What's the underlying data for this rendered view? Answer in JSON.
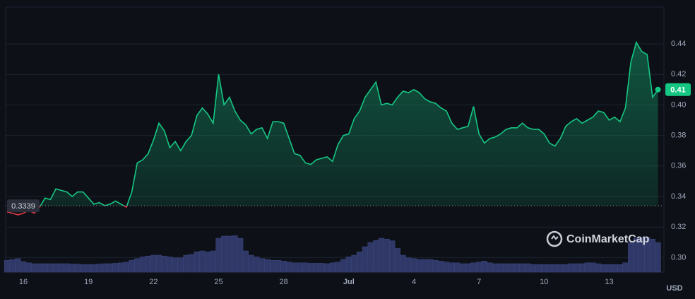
{
  "chart_data": {
    "type": "line",
    "categories": [
      null,
      null,
      null,
      "16",
      null,
      null,
      null,
      null,
      null,
      null,
      null,
      null,
      null,
      null,
      null,
      "19",
      null,
      null,
      null,
      null,
      null,
      null,
      null,
      null,
      null,
      null,
      null,
      "22",
      null,
      null,
      null,
      null,
      null,
      null,
      null,
      null,
      null,
      null,
      null,
      "25",
      null,
      null,
      null,
      null,
      null,
      null,
      null,
      null,
      null,
      null,
      null,
      "28",
      null,
      null,
      null,
      null,
      null,
      null,
      null,
      null,
      null,
      null,
      null,
      "Jul",
      null,
      null,
      null,
      null,
      null,
      null,
      null,
      null,
      null,
      null,
      null,
      "4",
      null,
      null,
      null,
      null,
      null,
      null,
      null,
      null,
      null,
      null,
      null,
      "7",
      null,
      null,
      null,
      null,
      null,
      null,
      null,
      null,
      null,
      null,
      null,
      "10",
      null,
      null,
      null,
      null,
      null,
      null,
      null,
      null,
      null,
      null,
      null,
      "13",
      null,
      null,
      null,
      null,
      null,
      null,
      null,
      null,
      null
    ],
    "series": [
      {
        "name": "Price",
        "color": "#16c784",
        "below_color": "#ea3943",
        "values": [
          0.33,
          0.329,
          0.328,
          0.329,
          0.331,
          0.329,
          0.333,
          0.339,
          0.338,
          0.345,
          0.344,
          0.343,
          0.34,
          0.343,
          0.343,
          0.339,
          0.335,
          0.336,
          0.334,
          0.335,
          0.337,
          0.335,
          0.333,
          0.343,
          0.362,
          0.364,
          0.368,
          0.377,
          0.388,
          0.383,
          0.372,
          0.376,
          0.37,
          0.376,
          0.38,
          0.393,
          0.398,
          0.394,
          0.388,
          0.42,
          0.4,
          0.405,
          0.396,
          0.39,
          0.387,
          0.381,
          0.384,
          0.385,
          0.378,
          0.389,
          0.389,
          0.388,
          0.378,
          0.368,
          0.367,
          0.362,
          0.361,
          0.364,
          0.365,
          0.366,
          0.363,
          0.374,
          0.38,
          0.381,
          0.391,
          0.396,
          0.405,
          0.41,
          0.415,
          0.4,
          0.401,
          0.4,
          0.405,
          0.409,
          0.408,
          0.41,
          0.408,
          0.404,
          0.402,
          0.401,
          0.398,
          0.396,
          0.388,
          0.384,
          0.385,
          0.386,
          0.399,
          0.381,
          0.375,
          0.378,
          0.379,
          0.381,
          0.384,
          0.385,
          0.385,
          0.388,
          0.385,
          0.384,
          0.384,
          0.381,
          0.375,
          0.373,
          0.378,
          0.386,
          0.389,
          0.391,
          0.388,
          0.39,
          0.392,
          0.396,
          0.395,
          0.39,
          0.392,
          0.389,
          0.398,
          0.428,
          0.441,
          0.435,
          0.433,
          0.405,
          0.41
        ]
      },
      {
        "name": "Volume",
        "color": "#2f3866",
        "axis": "y2",
        "values": [
          28,
          30,
          32,
          25,
          22,
          20,
          20,
          20,
          20,
          20,
          20,
          20,
          19,
          19,
          18,
          18,
          18,
          19,
          20,
          20,
          21,
          22,
          24,
          28,
          32,
          36,
          38,
          40,
          40,
          38,
          36,
          34,
          34,
          40,
          42,
          48,
          50,
          48,
          50,
          80,
          85,
          85,
          86,
          80,
          50,
          40,
          36,
          32,
          30,
          28,
          28,
          26,
          24,
          22,
          22,
          22,
          21,
          21,
          21,
          20,
          22,
          24,
          30,
          36,
          40,
          48,
          60,
          70,
          75,
          80,
          78,
          74,
          56,
          40,
          34,
          32,
          30,
          30,
          30,
          28,
          26,
          24,
          22,
          22,
          20,
          20,
          22,
          24,
          26,
          22,
          20,
          20,
          20,
          20,
          20,
          20,
          20,
          18,
          18,
          18,
          18,
          18,
          18,
          18,
          20,
          20,
          20,
          22,
          22,
          20,
          18,
          18,
          18,
          18,
          22,
          70,
          80,
          82,
          82,
          78,
          70
        ]
      }
    ],
    "ylim": [
      0.29,
      0.465
    ],
    "yticks": [
      {
        "value": 0.3,
        "label": "0.30"
      },
      0.32,
      0.34,
      0.36,
      0.38,
      {
        "value": 0.4,
        "label": "0.40"
      },
      0.42,
      0.44
    ],
    "y2lim": [
      0,
      100
    ],
    "grid": true,
    "baseline": 0.3339,
    "current_price": 0.41,
    "y_unit": "USD",
    "watermark": "CoinMarketCap"
  }
}
